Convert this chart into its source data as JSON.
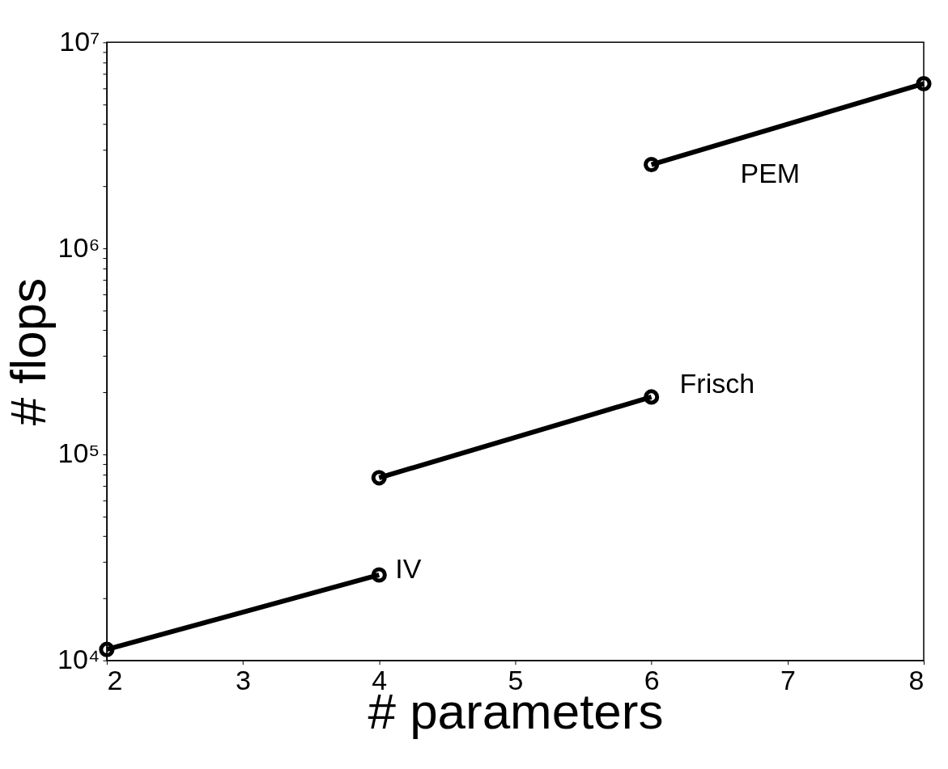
{
  "chart_data": {
    "type": "line",
    "xlabel": "# parameters",
    "ylabel": "# flops",
    "log": "y",
    "grid": false,
    "marker": "circle",
    "line_style": "solid",
    "xlim": [
      2,
      8
    ],
    "xticks": [
      2,
      3,
      4,
      5,
      6,
      7,
      8
    ],
    "ylim": [
      10000,
      10000000
    ],
    "yticks": [
      {
        "value": 10000,
        "label": "10⁴"
      },
      {
        "value": 20000,
        "label": null
      },
      {
        "value": 30000,
        "label": null
      },
      {
        "value": 40000,
        "label": null
      },
      {
        "value": 50000,
        "label": null
      },
      {
        "value": 60000,
        "label": null
      },
      {
        "value": 70000,
        "label": null
      },
      {
        "value": 80000,
        "label": null
      },
      {
        "value": 90000,
        "label": null
      },
      {
        "value": 100000,
        "label": "10⁵"
      },
      {
        "value": 200000,
        "label": null
      },
      {
        "value": 300000,
        "label": null
      },
      {
        "value": 400000,
        "label": null
      },
      {
        "value": 500000,
        "label": null
      },
      {
        "value": 600000,
        "label": null
      },
      {
        "value": 700000,
        "label": null
      },
      {
        "value": 800000,
        "label": null
      },
      {
        "value": 900000,
        "label": null
      },
      {
        "value": 1000000,
        "label": "10⁶"
      },
      {
        "value": 2000000,
        "label": null
      },
      {
        "value": 3000000,
        "label": null
      },
      {
        "value": 4000000,
        "label": null
      },
      {
        "value": 5000000,
        "label": null
      },
      {
        "value": 6000000,
        "label": null
      },
      {
        "value": 7000000,
        "label": null
      },
      {
        "value": 8000000,
        "label": null
      },
      {
        "value": 9000000,
        "label": null
      },
      {
        "value": 10000000,
        "label": "10⁷"
      }
    ],
    "series": [
      {
        "color": "#000000",
        "x": [
          2,
          4
        ],
        "values": [
          11300,
          26000
        ]
      },
      {
        "color": "#000000",
        "x": [
          4,
          6
        ],
        "values": [
          77000,
          190000
        ]
      },
      {
        "color": "#000000",
        "x": [
          6,
          8
        ],
        "values": [
          2550000,
          6300000
        ]
      }
    ],
    "annotations": [
      "IV",
      "Frisch",
      "PEM"
    ]
  }
}
